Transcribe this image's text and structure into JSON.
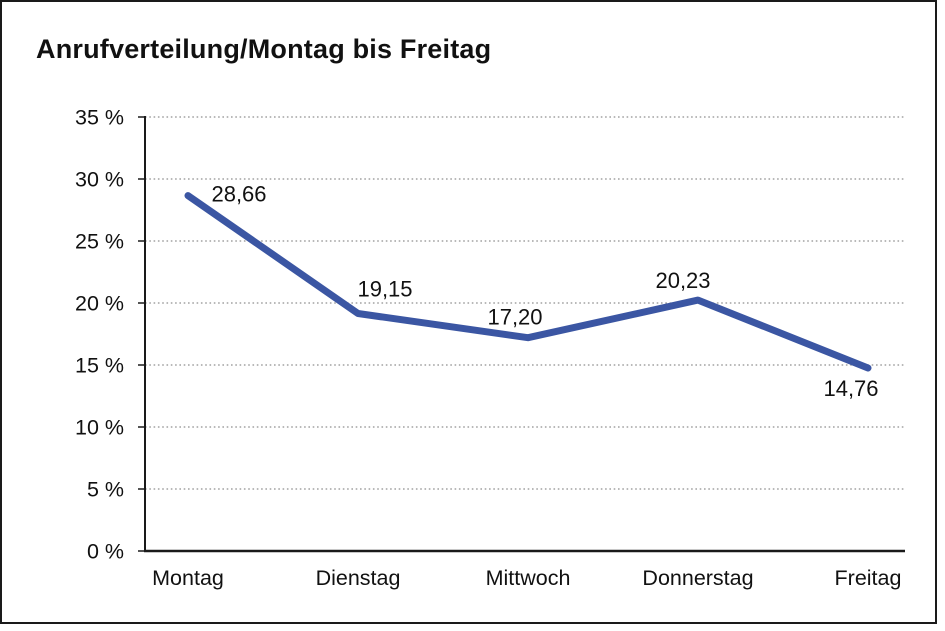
{
  "page": {
    "background_color": "#ffffff",
    "frame_border_color": "#1a1a1a"
  },
  "chart": {
    "title": "Anrufverteilung/Montag bis Freitag"
  },
  "chart_data": {
    "type": "line",
    "title": "Anrufverteilung/Montag bis Freitag",
    "categories": [
      "Montag",
      "Dienstag",
      "Mittwoch",
      "Donnerstag",
      "Freitag"
    ],
    "values": [
      28.66,
      19.15,
      17.2,
      20.23,
      14.76
    ],
    "point_labels": [
      "28,66",
      "19,15",
      "17,20",
      "20,23",
      "14,76"
    ],
    "xlabel": "",
    "ylabel": "",
    "ylim": [
      0,
      35
    ],
    "y_step": 5,
    "y_tick_labels": [
      "0 %",
      "5 %",
      "10 %",
      "15 %",
      "20 %",
      "25 %",
      "30 %",
      "35 %"
    ],
    "grid": "horizontal-dotted",
    "gridline_color": "#8f8f8f",
    "axis_color": "#1a1a1a",
    "line_color": "#3B56A3",
    "legend": "none"
  }
}
